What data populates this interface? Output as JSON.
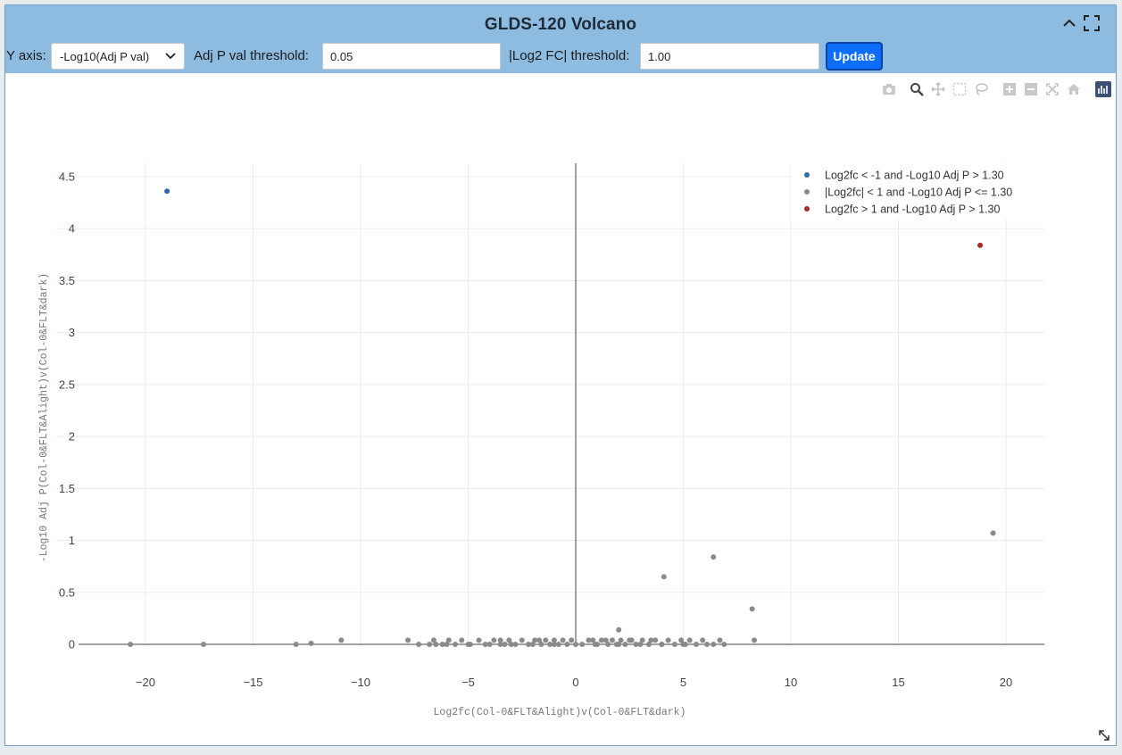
{
  "panel": {
    "title": "GLDS-120 Volcano"
  },
  "controls": {
    "y_axis_label": "Y axis:",
    "y_axis_selected": "-Log10(Adj P val)",
    "adj_p_label": "Adj P val threshold:",
    "adj_p_value": "0.05",
    "log2fc_label": "|Log2 FC| threshold:",
    "log2fc_value": "1.00",
    "update_label": "Update"
  },
  "modebar": {
    "icons": [
      "camera-icon",
      "zoom-icon",
      "pan-icon",
      "box-select-icon",
      "lasso-select-icon",
      "zoom-in-icon",
      "zoom-out-icon",
      "autoscale-icon",
      "reset-axes-icon",
      "plotly-logo-icon"
    ]
  },
  "colors": {
    "down": "#2e6da4",
    "ns": "#8a8a8a",
    "up": "#a52a2a",
    "header": "#8ebbe0",
    "button": "#0d6efd"
  },
  "chart_data": {
    "type": "scatter",
    "title": "",
    "xlabel": "Log2fc(Col-0&FLT&Alight)v(Col-0&FLT&dark)",
    "ylabel": "-Log10 Adj P(Col-0&FLT&Alight)v(Col-0&FLT&dark)",
    "xlim": [
      -23,
      22
    ],
    "ylim": [
      0,
      4.7
    ],
    "xticks": [
      -20,
      -15,
      -10,
      -5,
      0,
      5,
      10,
      15,
      20
    ],
    "xtick_labels": [
      "−20",
      "−15",
      "−10",
      "−5",
      "0",
      "5",
      "10",
      "15",
      "20"
    ],
    "yticks": [
      0,
      0.5,
      1,
      1.5,
      2,
      2.5,
      3,
      3.5,
      4,
      4.5
    ],
    "ytick_labels": [
      "0",
      "0.5",
      "1",
      "1.5",
      "2",
      "2.5",
      "3",
      "3.5",
      "4",
      "4.5"
    ],
    "grid": true,
    "legend_position": "top-right",
    "series": [
      {
        "name": "Log2fc < -1 and -Log10 Adj P > 1.30",
        "color": "#2e6da4",
        "x": [
          -19.0
        ],
        "y": [
          4.36
        ]
      },
      {
        "name": "|Log2fc| < 1 and -Log10 Adj P <= 1.30",
        "color": "#8a8a8a",
        "x": [
          -20.7,
          -17.3,
          -13.0,
          -12.3,
          -10.9,
          -7.8,
          -7.3,
          -6.8,
          -6.6,
          -6.5,
          -6.2,
          -5.9,
          -5.6,
          -5.3,
          -4.9,
          -4.5,
          -4.2,
          -3.8,
          -3.5,
          -3.3,
          -3.1,
          -2.8,
          -2.5,
          -2.2,
          -1.9,
          -1.6,
          -1.4,
          -1.2,
          -1.0,
          -0.8,
          -0.6,
          -0.4,
          -0.2,
          0.3,
          0.6,
          0.9,
          1.2,
          1.5,
          1.7,
          1.9,
          2.1,
          2.3,
          2.5,
          2.8,
          3.1,
          3.4,
          3.7,
          4.0,
          4.3,
          4.6,
          4.9,
          5.1,
          5.3,
          5.6,
          5.9,
          6.1,
          6.4,
          6.7,
          6.9,
          2.0,
          4.1,
          6.4,
          8.2,
          8.3,
          19.4,
          -6.0,
          -5.0,
          -4.0,
          -3.0,
          -2.0,
          -1.0,
          0.0,
          1.0,
          2.0,
          3.0,
          4.0,
          5.0,
          -3.5,
          1.4,
          2.6,
          -1.7,
          0.8,
          3.5
        ],
        "y": [
          0.0,
          0.0,
          0.0,
          0.01,
          0.04,
          0.04,
          0.0,
          0.0,
          0.04,
          0.0,
          0.0,
          0.04,
          0.0,
          0.04,
          0.0,
          0.04,
          0.0,
          0.04,
          0.0,
          0.0,
          0.04,
          0.0,
          0.04,
          0.0,
          0.04,
          0.0,
          0.04,
          0.0,
          0.04,
          0.0,
          0.04,
          0.0,
          0.04,
          0.0,
          0.04,
          0.0,
          0.04,
          0.0,
          0.04,
          0.0,
          0.04,
          0.0,
          0.04,
          0.0,
          0.04,
          0.0,
          0.04,
          0.0,
          0.04,
          0.0,
          0.04,
          0.0,
          0.04,
          0.0,
          0.04,
          0.0,
          0.0,
          0.04,
          0.0,
          0.14,
          0.65,
          0.84,
          0.34,
          0.04,
          1.07,
          0.0,
          0.0,
          0.0,
          0.0,
          0.0,
          0.0,
          0.0,
          0.0,
          0.0,
          0.0,
          0.0,
          0.0,
          0.04,
          0.04,
          0.04,
          0.04,
          0.04,
          0.04
        ]
      },
      {
        "name": "Log2fc > 1 and -Log10 Adj P > 1.30",
        "color": "#a52a2a",
        "x": [
          18.8
        ],
        "y": [
          3.84
        ]
      }
    ]
  }
}
